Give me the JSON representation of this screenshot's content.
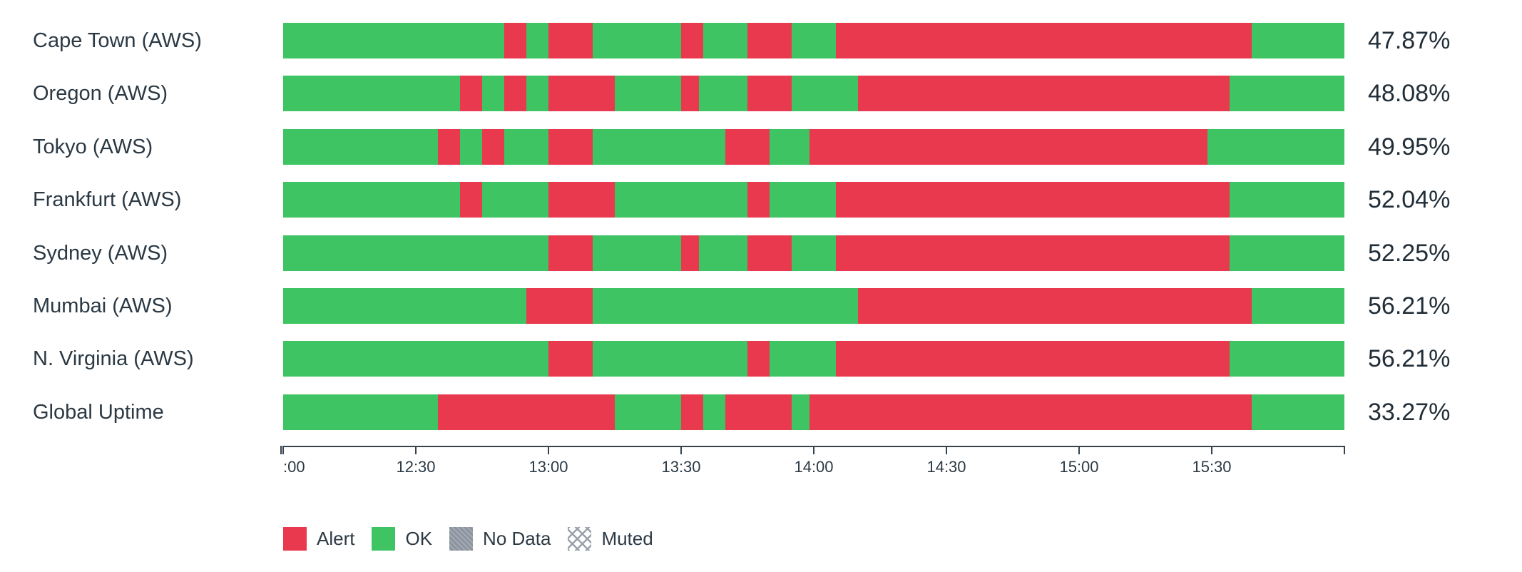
{
  "colors": {
    "alert": "#e8394e",
    "ok": "#3ec462",
    "no_data": "#8b939f",
    "muted_line": "#9aa1ac",
    "text": "#2b3944",
    "axis": "#36434e"
  },
  "chart_data": {
    "type": "status-timeline",
    "description": "Horizontal uptime status bars per region; green = OK, red = Alert",
    "x_range": [
      "12:00",
      "16:00"
    ],
    "total_minutes": 240,
    "x_ticks": [
      ":00",
      "12:30",
      "13:00",
      "13:30",
      "14:00",
      "14:30",
      "15:00",
      "15:30"
    ],
    "legend_position": "bottom-left",
    "rows": [
      {
        "label": "Cape Town (AWS)",
        "uptime": "47.87%",
        "segments": [
          {
            "start": 0,
            "end": 50,
            "status": "ok"
          },
          {
            "start": 50,
            "end": 55,
            "status": "alert"
          },
          {
            "start": 55,
            "end": 60,
            "status": "ok"
          },
          {
            "start": 60,
            "end": 70,
            "status": "alert"
          },
          {
            "start": 70,
            "end": 90,
            "status": "ok"
          },
          {
            "start": 90,
            "end": 95,
            "status": "alert"
          },
          {
            "start": 95,
            "end": 105,
            "status": "ok"
          },
          {
            "start": 105,
            "end": 115,
            "status": "alert"
          },
          {
            "start": 115,
            "end": 125,
            "status": "ok"
          },
          {
            "start": 125,
            "end": 219,
            "status": "alert"
          },
          {
            "start": 219,
            "end": 240,
            "status": "ok"
          }
        ]
      },
      {
        "label": "Oregon (AWS)",
        "uptime": "48.08%",
        "segments": [
          {
            "start": 0,
            "end": 40,
            "status": "ok"
          },
          {
            "start": 40,
            "end": 45,
            "status": "alert"
          },
          {
            "start": 45,
            "end": 50,
            "status": "ok"
          },
          {
            "start": 50,
            "end": 55,
            "status": "alert"
          },
          {
            "start": 55,
            "end": 60,
            "status": "ok"
          },
          {
            "start": 60,
            "end": 75,
            "status": "alert"
          },
          {
            "start": 75,
            "end": 90,
            "status": "ok"
          },
          {
            "start": 90,
            "end": 94,
            "status": "alert"
          },
          {
            "start": 94,
            "end": 105,
            "status": "ok"
          },
          {
            "start": 105,
            "end": 115,
            "status": "alert"
          },
          {
            "start": 115,
            "end": 130,
            "status": "ok"
          },
          {
            "start": 130,
            "end": 214,
            "status": "alert"
          },
          {
            "start": 214,
            "end": 240,
            "status": "ok"
          }
        ]
      },
      {
        "label": "Tokyo (AWS)",
        "uptime": "49.95%",
        "segments": [
          {
            "start": 0,
            "end": 35,
            "status": "ok"
          },
          {
            "start": 35,
            "end": 40,
            "status": "alert"
          },
          {
            "start": 40,
            "end": 45,
            "status": "ok"
          },
          {
            "start": 45,
            "end": 50,
            "status": "alert"
          },
          {
            "start": 50,
            "end": 60,
            "status": "ok"
          },
          {
            "start": 60,
            "end": 70,
            "status": "alert"
          },
          {
            "start": 70,
            "end": 100,
            "status": "ok"
          },
          {
            "start": 100,
            "end": 110,
            "status": "alert"
          },
          {
            "start": 110,
            "end": 119,
            "status": "ok"
          },
          {
            "start": 119,
            "end": 209,
            "status": "alert"
          },
          {
            "start": 209,
            "end": 240,
            "status": "ok"
          }
        ]
      },
      {
        "label": "Frankfurt (AWS)",
        "uptime": "52.04%",
        "segments": [
          {
            "start": 0,
            "end": 40,
            "status": "ok"
          },
          {
            "start": 40,
            "end": 45,
            "status": "alert"
          },
          {
            "start": 45,
            "end": 60,
            "status": "ok"
          },
          {
            "start": 60,
            "end": 75,
            "status": "alert"
          },
          {
            "start": 75,
            "end": 105,
            "status": "ok"
          },
          {
            "start": 105,
            "end": 110,
            "status": "alert"
          },
          {
            "start": 110,
            "end": 125,
            "status": "ok"
          },
          {
            "start": 125,
            "end": 214,
            "status": "alert"
          },
          {
            "start": 214,
            "end": 240,
            "status": "ok"
          }
        ]
      },
      {
        "label": "Sydney (AWS)",
        "uptime": "52.25%",
        "segments": [
          {
            "start": 0,
            "end": 60,
            "status": "ok"
          },
          {
            "start": 60,
            "end": 70,
            "status": "alert"
          },
          {
            "start": 70,
            "end": 90,
            "status": "ok"
          },
          {
            "start": 90,
            "end": 94,
            "status": "alert"
          },
          {
            "start": 94,
            "end": 105,
            "status": "ok"
          },
          {
            "start": 105,
            "end": 115,
            "status": "alert"
          },
          {
            "start": 115,
            "end": 125,
            "status": "ok"
          },
          {
            "start": 125,
            "end": 214,
            "status": "alert"
          },
          {
            "start": 214,
            "end": 240,
            "status": "ok"
          }
        ]
      },
      {
        "label": "Mumbai (AWS)",
        "uptime": "56.21%",
        "segments": [
          {
            "start": 0,
            "end": 55,
            "status": "ok"
          },
          {
            "start": 55,
            "end": 70,
            "status": "alert"
          },
          {
            "start": 70,
            "end": 130,
            "status": "ok"
          },
          {
            "start": 130,
            "end": 219,
            "status": "alert"
          },
          {
            "start": 219,
            "end": 240,
            "status": "ok"
          }
        ]
      },
      {
        "label": "N. Virginia (AWS)",
        "uptime": "56.21%",
        "segments": [
          {
            "start": 0,
            "end": 60,
            "status": "ok"
          },
          {
            "start": 60,
            "end": 70,
            "status": "alert"
          },
          {
            "start": 70,
            "end": 105,
            "status": "ok"
          },
          {
            "start": 105,
            "end": 110,
            "status": "alert"
          },
          {
            "start": 110,
            "end": 125,
            "status": "ok"
          },
          {
            "start": 125,
            "end": 214,
            "status": "alert"
          },
          {
            "start": 214,
            "end": 240,
            "status": "ok"
          }
        ]
      },
      {
        "label": "Global Uptime",
        "uptime": "33.27%",
        "segments": [
          {
            "start": 0,
            "end": 35,
            "status": "ok"
          },
          {
            "start": 35,
            "end": 75,
            "status": "alert"
          },
          {
            "start": 75,
            "end": 90,
            "status": "ok"
          },
          {
            "start": 90,
            "end": 95,
            "status": "alert"
          },
          {
            "start": 95,
            "end": 100,
            "status": "ok"
          },
          {
            "start": 100,
            "end": 115,
            "status": "alert"
          },
          {
            "start": 115,
            "end": 119,
            "status": "ok"
          },
          {
            "start": 119,
            "end": 219,
            "status": "alert"
          },
          {
            "start": 219,
            "end": 240,
            "status": "ok"
          }
        ]
      }
    ],
    "legend": [
      {
        "label": "Alert",
        "status": "alert"
      },
      {
        "label": "OK",
        "status": "ok"
      },
      {
        "label": "No Data",
        "status": "no_data"
      },
      {
        "label": "Muted",
        "status": "muted"
      }
    ]
  }
}
